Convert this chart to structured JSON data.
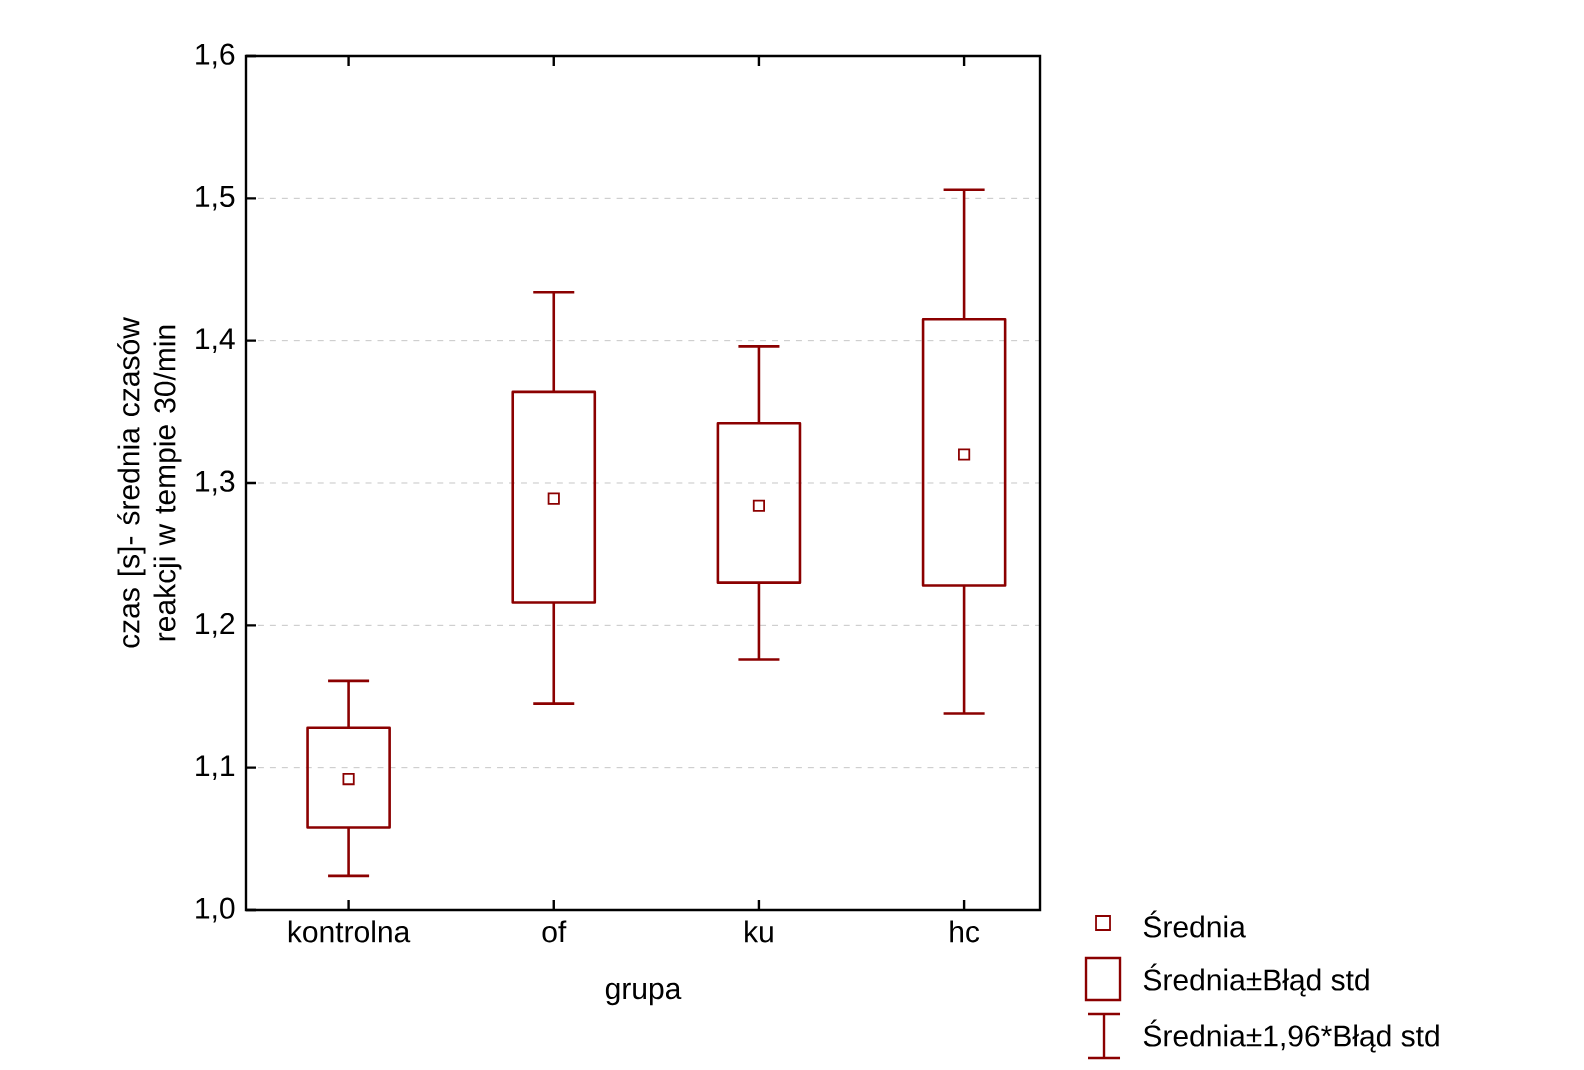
{
  "chart_data": {
    "type": "box",
    "xlabel": "grupa",
    "ylabel": "czas [s]- średnia czasów reakcji w tempie 30/min",
    "categories": [
      "kontrolna",
      "of",
      "ku",
      "hc"
    ],
    "color": "#8b0000",
    "boxes": [
      {
        "low": 1.024,
        "q1": 1.058,
        "median": 1.092,
        "q3": 1.128,
        "high": 1.161
      },
      {
        "low": 1.145,
        "q1": 1.216,
        "median": 1.289,
        "q3": 1.364,
        "high": 1.434
      },
      {
        "low": 1.176,
        "q1": 1.23,
        "median": 1.284,
        "q3": 1.342,
        "high": 1.396
      },
      {
        "low": 1.138,
        "q1": 1.228,
        "median": 1.32,
        "q3": 1.415,
        "high": 1.506
      }
    ],
    "ylim": [
      1.0,
      1.6
    ],
    "yticks": [
      {
        "value": 1.0,
        "label": "1,0"
      },
      {
        "value": 1.1,
        "label": "1,1"
      },
      {
        "value": 1.2,
        "label": "1,2"
      },
      {
        "value": 1.3,
        "label": "1,3"
      },
      {
        "value": 1.4,
        "label": "1,4"
      },
      {
        "value": 1.5,
        "label": "1,5"
      },
      {
        "value": 1.6,
        "label": "1,6"
      }
    ],
    "grid": "y",
    "marker": "square",
    "annotations": [
      "Średnia",
      "Średnia±Błąd std",
      "Średnia±1,96*Błąd std"
    ]
  }
}
